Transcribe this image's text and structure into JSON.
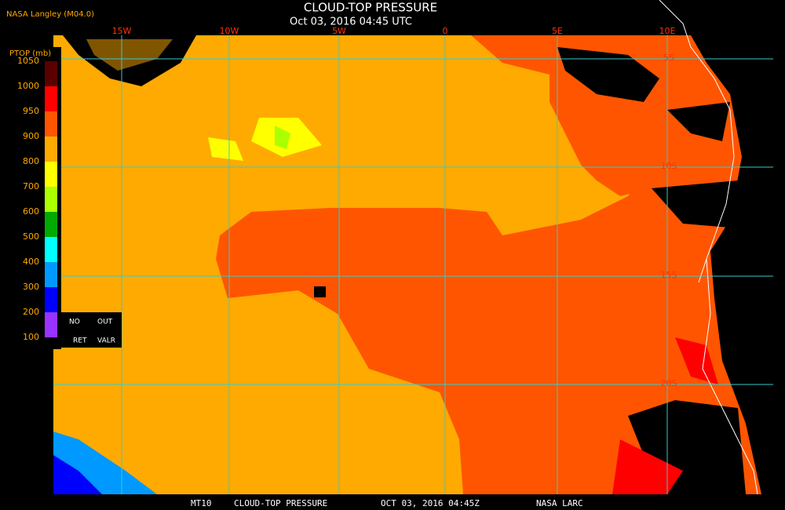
{
  "header": {
    "source": "NASA Langley (M04.0)",
    "title": "CLOUD-TOP PRESSURE",
    "datetime": "Oct 03, 2016 04:45 UTC"
  },
  "legend": {
    "title": "PTOP (mb)",
    "ticks": [
      1050,
      1000,
      950,
      900,
      800,
      700,
      600,
      500,
      400,
      300,
      200,
      100
    ],
    "colors": [
      "#5a0000",
      "#ff0000",
      "#ff5500",
      "#ffaa00",
      "#ffff00",
      "#aaff00",
      "#00aa00",
      "#00ffff",
      "#0099ff",
      "#0000ff",
      "#9933ff"
    ],
    "no_retrieval": [
      "NO",
      "OUT",
      "RET",
      "VALR"
    ]
  },
  "grid": {
    "longitudes": [
      "15W",
      "10W",
      "5W",
      "0",
      "5E",
      "10E"
    ],
    "latitudes": [
      "5S",
      "10S",
      "15S",
      "20S"
    ]
  },
  "footer": [
    "MT10",
    "CLOUD-TOP PRESSURE",
    "OCT 03, 2016 04:45Z",
    "NASA LARC"
  ]
}
